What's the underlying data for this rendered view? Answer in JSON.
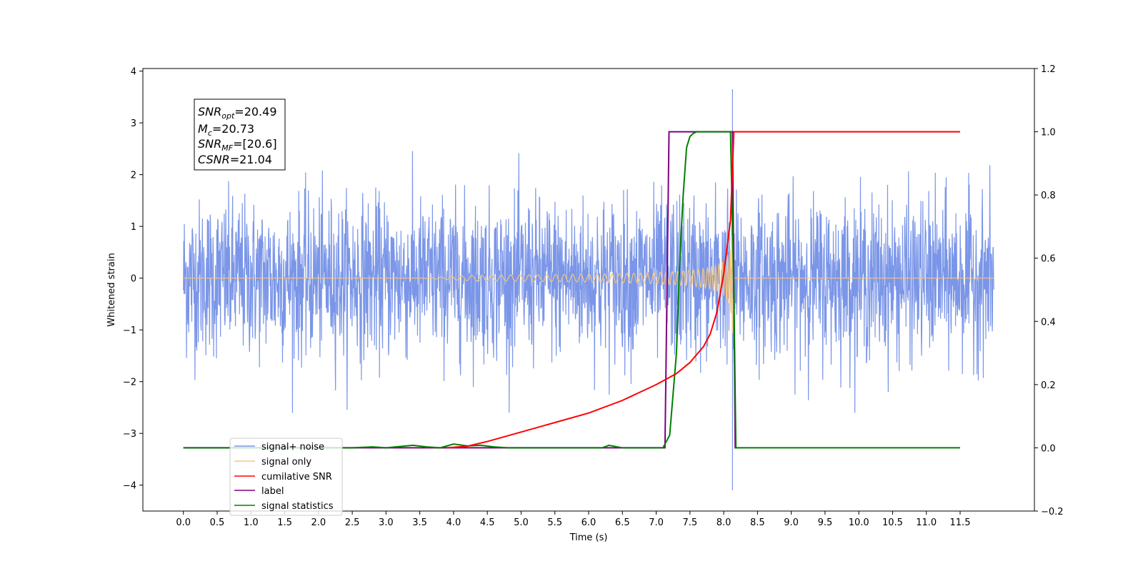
{
  "chart_data": {
    "type": "line",
    "xlabel": "Time (s)",
    "ylabel": "Whitened strain",
    "xlim": [
      -0.6,
      12.6
    ],
    "ylim_left": [
      -4.5,
      4.05
    ],
    "ylim_right": [
      -0.2,
      1.2
    ],
    "x_ticks": [
      "0.0",
      "0.5",
      "1.0",
      "1.5",
      "2.0",
      "2.5",
      "3.0",
      "3.5",
      "4.0",
      "4.5",
      "5.0",
      "5.5",
      "6.0",
      "6.5",
      "7.0",
      "7.5",
      "8.0",
      "8.5",
      "9.0",
      "9.5",
      "10.0",
      "10.5",
      "11.0",
      "11.5"
    ],
    "y_ticks_left": [
      "4",
      "3",
      "2",
      "1",
      "0",
      "−1",
      "−2",
      "−3",
      "−4"
    ],
    "y_ticks_right": [
      "1.2",
      "1.0",
      "0.8",
      "0.6",
      "0.4",
      "0.2",
      "0.0",
      "−0.2"
    ],
    "annotation": {
      "line1": {
        "base": "SNR",
        "sub": "opt",
        "rest": "=20.49"
      },
      "line2": {
        "base": "M",
        "sub": "c",
        "rest": "=20.73"
      },
      "line3": {
        "base": "SNR",
        "sub": "MF",
        "rest": "=[20.6]"
      },
      "line4": {
        "base": "CSNR",
        "sub": "",
        "rest": "=21.04"
      }
    },
    "legend": {
      "placement": "lower-left",
      "entries": [
        {
          "label": "signal+ noise",
          "color": "#7b96e8"
        },
        {
          "label": "signal only",
          "color": "#f5c57a"
        },
        {
          "label": "cumilative SNR",
          "color": "#ff0000"
        },
        {
          "label": "label",
          "color": "#800080"
        },
        {
          "label": "signal statistics",
          "color": "#008000"
        }
      ]
    },
    "series": [
      {
        "name": "signal+ noise",
        "axis": "left",
        "duration_s": 12.0,
        "noise_std": 0.75,
        "spike_max": 3.65,
        "spike_min": -4.1,
        "spike_time": 8.13,
        "color": "#7b96e8"
      },
      {
        "name": "signal only",
        "axis": "left",
        "start_s": 3.5,
        "merger_s": 8.15,
        "peak_amplitude": 1.45,
        "color": "#f5c57a"
      },
      {
        "name": "cumilative SNR",
        "axis": "right",
        "x": [
          3.9,
          4.2,
          4.5,
          5.0,
          5.5,
          6.0,
          6.5,
          7.0,
          7.3,
          7.5,
          7.7,
          7.8,
          7.9,
          8.0,
          8.1,
          8.15,
          8.2,
          11.5
        ],
        "y": [
          0.0,
          0.005,
          0.02,
          0.05,
          0.08,
          0.11,
          0.15,
          0.2,
          0.235,
          0.27,
          0.32,
          0.36,
          0.43,
          0.55,
          0.72,
          1.0,
          1.0,
          1.0
        ],
        "color": "#ff0000"
      },
      {
        "name": "label",
        "axis": "right",
        "x": [
          0.0,
          7.13,
          7.19,
          8.13,
          8.17,
          8.2
        ],
        "y": [
          0.0,
          0.0,
          1.0,
          1.0,
          0.0,
          0.0
        ],
        "color": "#800080"
      },
      {
        "name": "signal statistics",
        "axis": "right",
        "x": [
          0.0,
          2.5,
          2.8,
          3.0,
          3.2,
          3.4,
          3.6,
          3.8,
          4.0,
          4.2,
          4.4,
          4.6,
          4.8,
          6.0,
          6.2,
          6.3,
          6.5,
          7.0,
          7.1,
          7.2,
          7.3,
          7.35,
          7.4,
          7.45,
          7.5,
          7.55,
          7.6,
          7.7,
          8.1,
          8.15,
          8.18,
          8.3,
          11.5
        ],
        "y": [
          0.0,
          0.0,
          0.003,
          0.0,
          0.004,
          0.008,
          0.003,
          0.0,
          0.012,
          0.006,
          0.008,
          0.003,
          0.0,
          0.0,
          0.0,
          0.008,
          0.0,
          0.0,
          0.0,
          0.04,
          0.3,
          0.6,
          0.8,
          0.95,
          0.985,
          0.995,
          1.0,
          1.0,
          1.0,
          0.5,
          0.0,
          0.0,
          0.0
        ],
        "color": "#008000"
      }
    ]
  }
}
